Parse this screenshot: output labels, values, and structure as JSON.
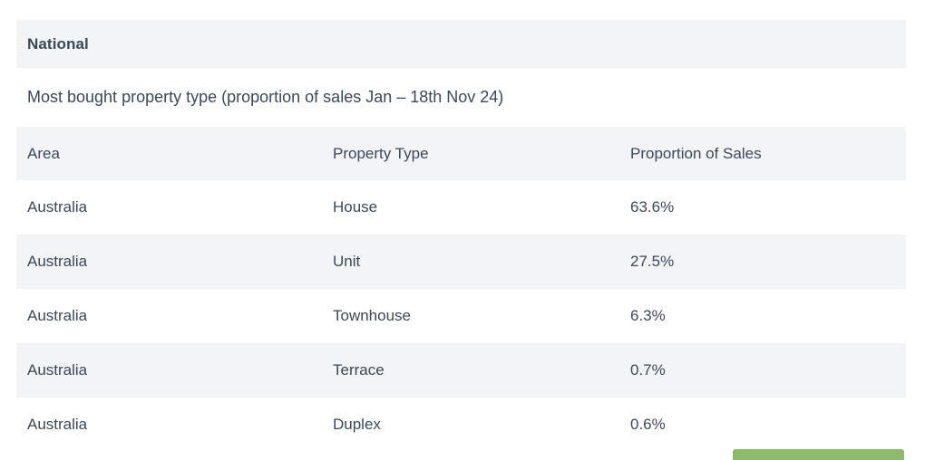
{
  "section": {
    "title": "National"
  },
  "table": {
    "caption": "Most bought property type (proportion of sales Jan – 18th Nov 24)",
    "columns": [
      "Area",
      "Property Type",
      "Proportion of Sales"
    ],
    "rows": [
      {
        "area": "Australia",
        "property_type": "House",
        "proportion": "63.6%"
      },
      {
        "area": "Australia",
        "property_type": "Unit",
        "proportion": "27.5%"
      },
      {
        "area": "Australia",
        "property_type": "Townhouse",
        "proportion": "6.3%"
      },
      {
        "area": "Australia",
        "property_type": "Terrace",
        "proportion": "0.7%"
      },
      {
        "area": "Australia",
        "property_type": "Duplex",
        "proportion": "0.6%"
      }
    ]
  },
  "colors": {
    "stripe_background": "#f2f4f6",
    "text": "#3c4858",
    "accent_green": "#8eba6e"
  }
}
